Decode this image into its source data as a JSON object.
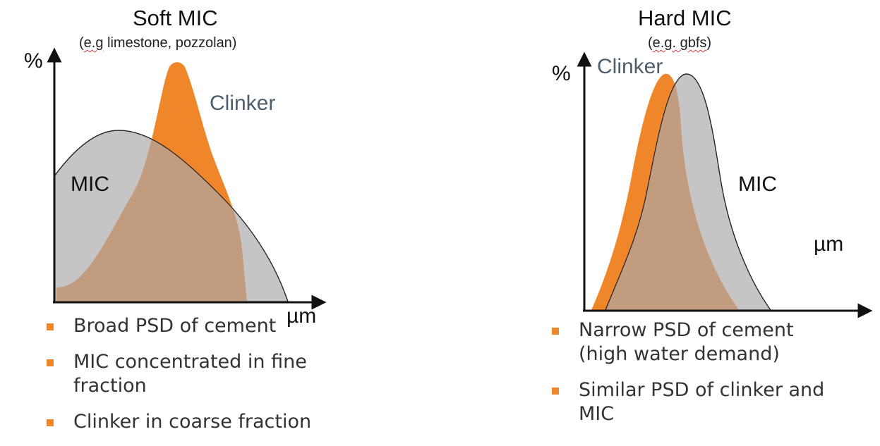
{
  "panels": [
    {
      "title": "Soft MIC",
      "subtitle_prefix": "(",
      "subtitle_underlined": "e.g",
      "subtitle_rest": " limestone, pozzolan)",
      "y_axis_label": "%",
      "x_axis_label": "µm",
      "curve_labels": {
        "clinker": "Clinker",
        "mic": "MIC"
      },
      "bullets": [
        "Broad PSD of cement",
        "MIC concentrated in fine fraction",
        "Clinker in coarse fraction"
      ]
    },
    {
      "title": "Hard MIC",
      "subtitle_prefix": "(",
      "subtitle_underlined": "e.g. gbfs",
      "subtitle_rest": ")",
      "y_axis_label": "%",
      "x_axis_label": "µm",
      "curve_labels": {
        "clinker": "Clinker",
        "mic": "MIC"
      },
      "bullets": [
        "Narrow PSD of cement (high water demand)",
        "Similar PSD of clinker and MIC"
      ]
    }
  ],
  "colors": {
    "clinker": "#f0862a",
    "mic": "#c5c5c5",
    "overlap": "#c29c7f",
    "clinker_label_text": "#4c5d6c",
    "bullet": "#f0862a"
  }
}
